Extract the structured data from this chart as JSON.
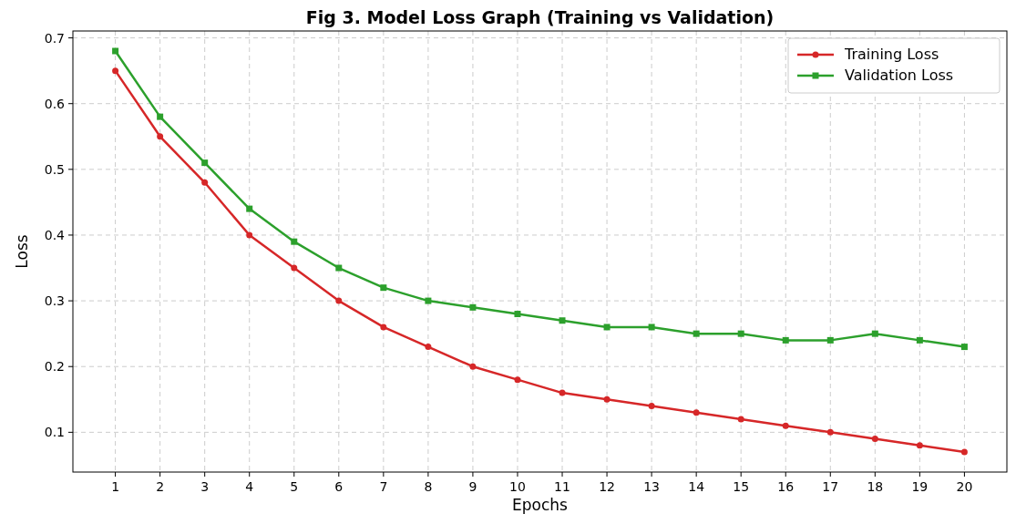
{
  "chart_data": {
    "type": "line",
    "title": "Fig 3. Model Loss Graph (Training vs Validation)",
    "xlabel": "Epochs",
    "ylabel": "Loss",
    "x": [
      1,
      2,
      3,
      4,
      5,
      6,
      7,
      8,
      9,
      10,
      11,
      12,
      13,
      14,
      15,
      16,
      17,
      18,
      19,
      20
    ],
    "series": [
      {
        "name": "Training Loss",
        "color": "#d62728",
        "marker": "circle",
        "values": [
          0.65,
          0.55,
          0.48,
          0.4,
          0.35,
          0.3,
          0.26,
          0.23,
          0.2,
          0.18,
          0.16,
          0.15,
          0.14,
          0.13,
          0.12,
          0.11,
          0.1,
          0.09,
          0.08,
          0.07
        ]
      },
      {
        "name": "Validation Loss",
        "color": "#2ca02c",
        "marker": "square",
        "values": [
          0.68,
          0.58,
          0.51,
          0.44,
          0.39,
          0.35,
          0.32,
          0.3,
          0.29,
          0.28,
          0.27,
          0.26,
          0.26,
          0.25,
          0.25,
          0.24,
          0.24,
          0.25,
          0.24,
          0.23
        ]
      }
    ],
    "xlim": [
      0.05,
      20.95
    ],
    "xticks": [
      1,
      2,
      3,
      4,
      5,
      6,
      7,
      8,
      9,
      10,
      11,
      12,
      13,
      14,
      15,
      16,
      17,
      18,
      19,
      20
    ],
    "ylim": [
      0.0395,
      0.7105
    ],
    "yticks": [
      0.1,
      0.2,
      0.3,
      0.4,
      0.5,
      0.6,
      0.7
    ],
    "grid": true,
    "legend": "top right",
    "line_style": "solid"
  }
}
